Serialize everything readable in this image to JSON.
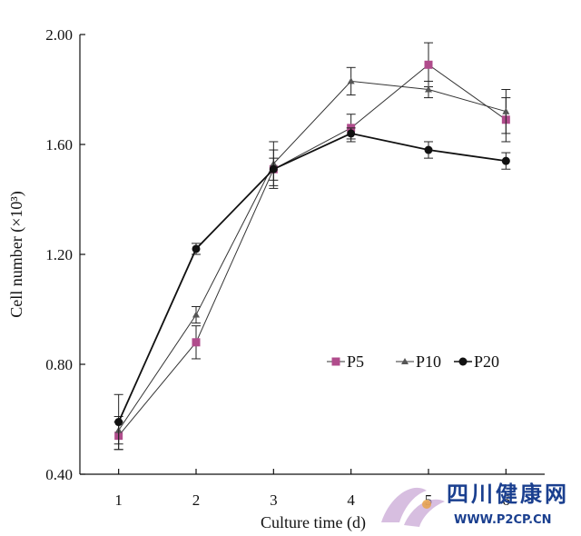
{
  "chart_data": {
    "type": "line",
    "xlabel": "Culture time (d)",
    "ylabel": "Cell number (×10³)",
    "x": [
      1,
      2,
      3,
      4,
      5,
      6
    ],
    "x_tick_labels": [
      "1",
      "2",
      "3",
      "4",
      "5",
      "6"
    ],
    "ylim": [
      0.4,
      2.0
    ],
    "y_ticks": [
      "0.40",
      "0.80",
      "1.20",
      "1.60",
      "2.00"
    ],
    "grid": false,
    "legend_position": "right",
    "series": [
      {
        "name": "P5",
        "marker": "square",
        "color": "#b04c8c",
        "values": [
          0.54,
          0.88,
          1.51,
          1.66,
          1.89,
          1.69
        ],
        "errors": [
          0.05,
          0.06,
          0.07,
          0.05,
          0.08,
          0.08
        ]
      },
      {
        "name": "P10",
        "marker": "triangle",
        "color": "#555555",
        "values": [
          0.56,
          0.98,
          1.53,
          1.83,
          1.8,
          1.72
        ],
        "errors": [
          0.05,
          0.03,
          0.08,
          0.05,
          0.03,
          0.08
        ]
      },
      {
        "name": "P20",
        "marker": "circle",
        "color": "#111111",
        "values": [
          0.59,
          1.22,
          1.51,
          1.64,
          1.58,
          1.54
        ],
        "errors": [
          0.1,
          0.02,
          0.04,
          0.02,
          0.03,
          0.03
        ]
      }
    ]
  },
  "watermark": {
    "cn_text": "四川健康网",
    "url": "WWW.P2CP.CN"
  }
}
